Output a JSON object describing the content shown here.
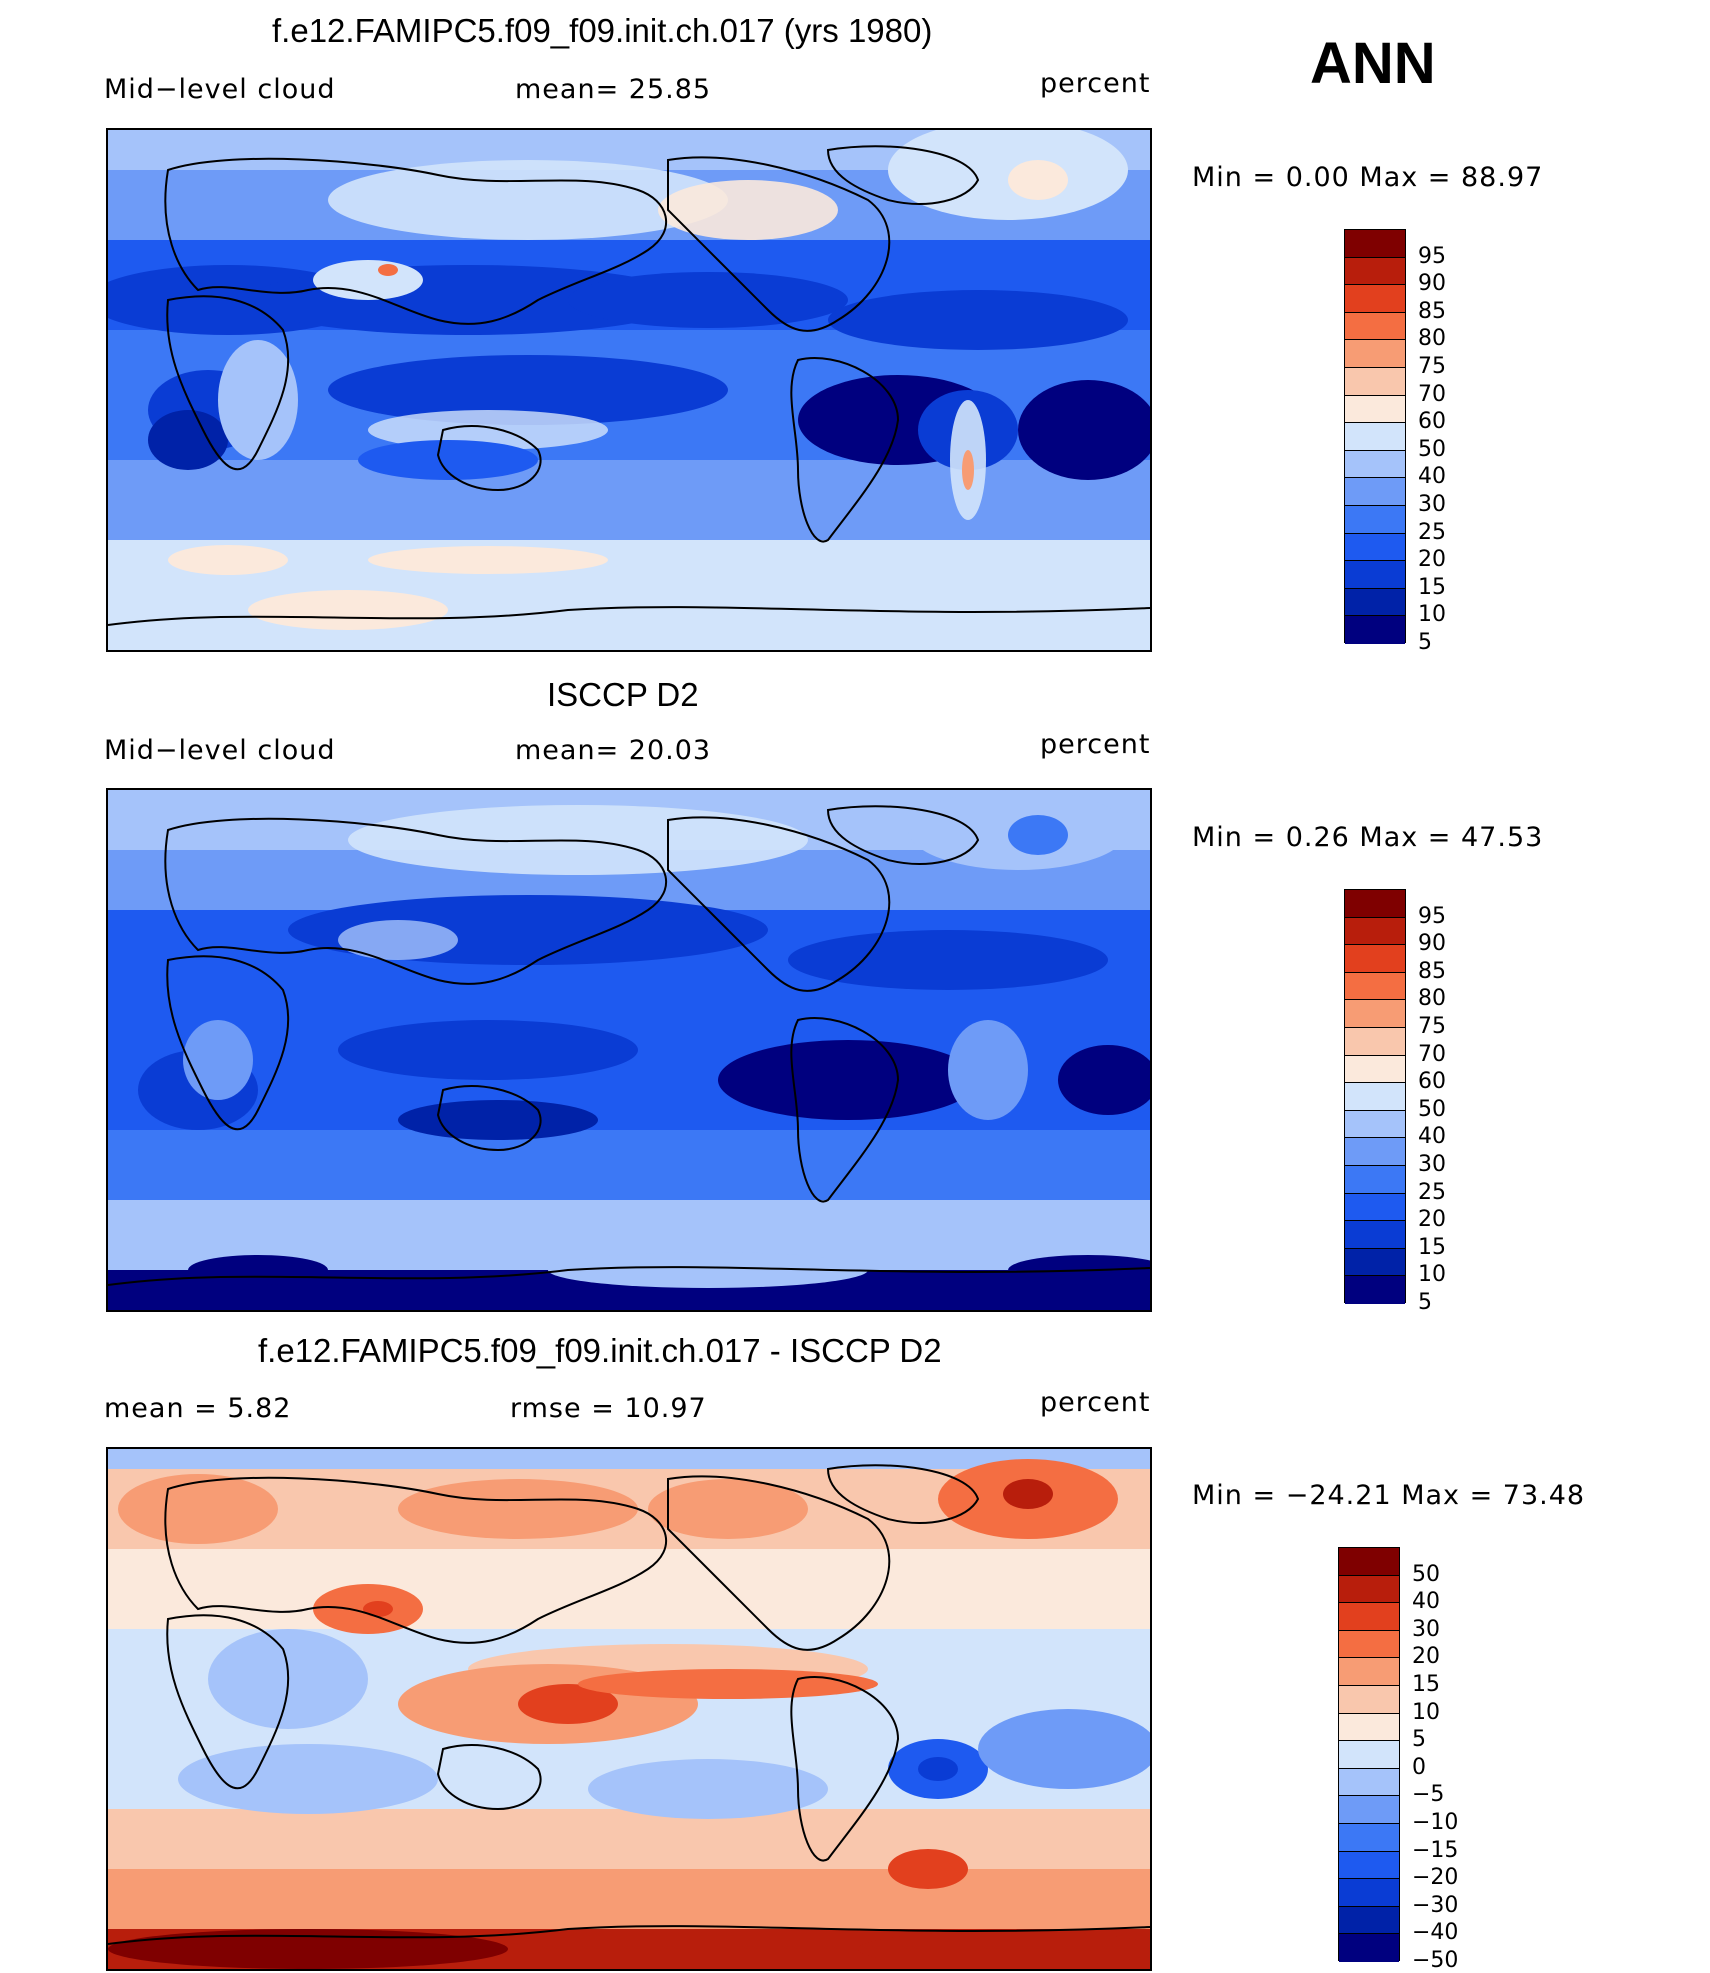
{
  "header": {
    "season": "ANN"
  },
  "panels": [
    {
      "id": "model",
      "title": "f.e12.FAMIPC5.f09_f09.init.ch.017 (yrs 1980)",
      "left_label": "Mid−level cloud",
      "center_label": "mean=   25.85",
      "units": "percent",
      "minmax": "Min  =     0.00  Max  =    88.97",
      "cbar_ticks": [
        "95",
        "90",
        "85",
        "80",
        "75",
        "70",
        "60",
        "50",
        "40",
        "30",
        "25",
        "20",
        "15",
        "10",
        "5"
      ],
      "map_theme": "blue"
    },
    {
      "id": "obs",
      "title": "ISCCP D2",
      "left_label": "Mid−level cloud",
      "center_label": "mean=   20.03",
      "units": "percent",
      "minmax": "Min  =     0.26  Max  =    47.53",
      "cbar_ticks": [
        "95",
        "90",
        "85",
        "80",
        "75",
        "70",
        "60",
        "50",
        "40",
        "30",
        "25",
        "20",
        "15",
        "10",
        "5"
      ],
      "map_theme": "blue"
    },
    {
      "id": "diff",
      "title": "f.e12.FAMIPC5.f09_f09.init.ch.017 - ISCCP D2",
      "left_label": "mean  =      5.82",
      "center_label": "rmse  =    10.97",
      "units": "percent",
      "minmax": "Min  = −24.21  Max  =    73.48",
      "cbar_ticks": [
        "50",
        "40",
        "30",
        "20",
        "15",
        "10",
        "5",
        "0",
        "−5",
        "−10",
        "−15",
        "−20",
        "−30",
        "−40",
        "−50"
      ],
      "map_theme": "diff"
    }
  ],
  "chart_data": [
    {
      "type": "heatmap",
      "title": "f.e12.FAMIPC5.f09_f09.init.ch.017 (yrs 1980)",
      "variable": "Mid−level cloud",
      "units": "percent",
      "mean": 25.85,
      "min": 0.0,
      "max": 88.97,
      "contour_levels": [
        5,
        10,
        15,
        20,
        25,
        30,
        40,
        50,
        60,
        70,
        75,
        80,
        85,
        90,
        95
      ],
      "colors": [
        "#00007f",
        "#0022a8",
        "#0a3cd4",
        "#1e5af0",
        "#3c78f5",
        "#6e9bf7",
        "#a5c3fa",
        "#d2e4fb",
        "#fbe9dc",
        "#f9c7ad",
        "#f79c74",
        "#f46e42",
        "#e2401e",
        "#b81e0c",
        "#7f0000"
      ]
    },
    {
      "type": "heatmap",
      "title": "ISCCP D2",
      "variable": "Mid−level cloud",
      "units": "percent",
      "mean": 20.03,
      "min": 0.26,
      "max": 47.53,
      "contour_levels": [
        5,
        10,
        15,
        20,
        25,
        30,
        40,
        50,
        60,
        70,
        75,
        80,
        85,
        90,
        95
      ],
      "colors": [
        "#00007f",
        "#0022a8",
        "#0a3cd4",
        "#1e5af0",
        "#3c78f5",
        "#6e9bf7",
        "#a5c3fa",
        "#d2e4fb",
        "#fbe9dc",
        "#f9c7ad",
        "#f79c74",
        "#f46e42",
        "#e2401e",
        "#b81e0c",
        "#7f0000"
      ]
    },
    {
      "type": "heatmap",
      "title": "f.e12.FAMIPC5.f09_f09.init.ch.017 - ISCCP D2",
      "units": "percent",
      "mean": 5.82,
      "rmse": 10.97,
      "min": -24.21,
      "max": 73.48,
      "contour_levels": [
        -50,
        -40,
        -30,
        -20,
        -15,
        -10,
        -5,
        0,
        5,
        10,
        15,
        20,
        30,
        40,
        50
      ],
      "colors": [
        "#00007f",
        "#0022a8",
        "#0a3cd4",
        "#1e5af0",
        "#3c78f5",
        "#6e9bf7",
        "#a5c3fa",
        "#d2e4fb",
        "#fbe9dc",
        "#f9c7ad",
        "#f79c74",
        "#f46e42",
        "#e2401e",
        "#b81e0c",
        "#7f0000"
      ]
    }
  ],
  "colorbar_colors": [
    "#7f0000",
    "#b81e0c",
    "#e2401e",
    "#f46e42",
    "#f79c74",
    "#f9c7ad",
    "#fbe9dc",
    "#d2e4fb",
    "#a5c3fa",
    "#6e9bf7",
    "#3c78f5",
    "#1e5af0",
    "#0a3cd4",
    "#0022a8",
    "#00007f"
  ]
}
